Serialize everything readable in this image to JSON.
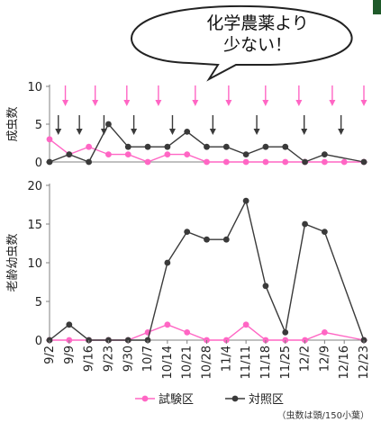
{
  "callout": "化学農薬より\n少ない！",
  "corner_color": "#1f5a2a",
  "colors": {
    "test": "#ff66c4",
    "control": "#3a3a3a",
    "arrow_test": "#ff66c4",
    "arrow_control": "#3a3a3a",
    "axis": "#808080"
  },
  "footnote": "（虫数は頭/150小葉）",
  "chart_data": [
    {
      "type": "line",
      "ylabel": "成虫数",
      "ylim": [
        0,
        10
      ],
      "yticks": [
        0,
        5,
        10
      ],
      "categories": [
        "9/2",
        "9/9",
        "9/16",
        "9/23",
        "9/30",
        "10/7",
        "10/14",
        "10/21",
        "10/28",
        "11/4",
        "11/11",
        "11/18",
        "11/25",
        "12/2",
        "12/9",
        "12/16",
        "12/23"
      ],
      "series": [
        {
          "name": "試験区",
          "values": [
            3,
            1,
            2,
            1,
            1,
            0,
            1,
            1,
            0,
            0,
            0,
            0,
            0,
            0,
            0,
            0,
            0
          ]
        },
        {
          "name": "対照区",
          "values": [
            0,
            1,
            0,
            5,
            2,
            2,
            2,
            4,
            2,
            2,
            1,
            2,
            2,
            0,
            1,
            null,
            0
          ]
        }
      ],
      "arrows_test": [
        0.9,
        2.6,
        4.4,
        6.2,
        8.3,
        10.2,
        12.3,
        14.2,
        16.1,
        17.9
      ],
      "arrows_control": [
        0.5,
        1.7,
        3.1,
        4.8,
        7.0,
        9.3,
        11.8,
        14.5,
        16.6
      ]
    },
    {
      "type": "line",
      "ylabel": "老齢幼虫数",
      "ylim": [
        0,
        20
      ],
      "yticks": [
        0,
        5,
        10,
        15,
        20
      ],
      "xticks": [
        "9/2",
        "9/9",
        "9/16",
        "9/23",
        "9/30",
        "10/7",
        "10/14",
        "10/21",
        "10/28",
        "11/4",
        "11/11",
        "11/18",
        "11/25",
        "12/2",
        "12/9",
        "12/16",
        "12/23"
      ],
      "series": [
        {
          "name": "試験区",
          "values": [
            0,
            0,
            0,
            0,
            0,
            1,
            2,
            1,
            0,
            0,
            2,
            0,
            0,
            0,
            1,
            null,
            0
          ]
        },
        {
          "name": "対照区",
          "values": [
            0,
            2,
            0,
            0,
            0,
            0,
            10,
            14,
            13,
            13,
            18,
            7,
            1,
            15,
            14,
            null,
            0
          ]
        }
      ]
    }
  ]
}
